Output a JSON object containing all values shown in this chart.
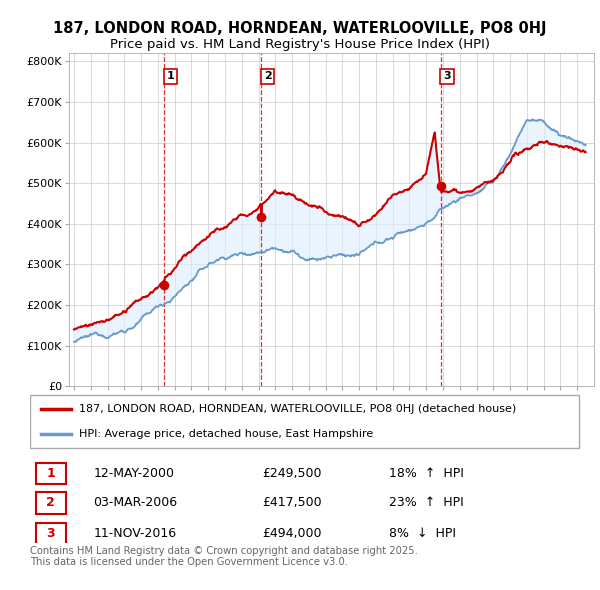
{
  "title": "187, LONDON ROAD, HORNDEAN, WATERLOOVILLE, PO8 0HJ",
  "subtitle": "Price paid vs. HM Land Registry's House Price Index (HPI)",
  "ylim": [
    0,
    820000
  ],
  "yticks": [
    0,
    100000,
    200000,
    300000,
    400000,
    500000,
    600000,
    700000,
    800000
  ],
  "ytick_labels": [
    "£0",
    "£100K",
    "£200K",
    "£300K",
    "£400K",
    "£500K",
    "£600K",
    "£700K",
    "£800K"
  ],
  "house_color": "#cc0000",
  "hpi_color": "#aabbdd",
  "hpi_line_color": "#6699cc",
  "vline_color": "#cc0000",
  "grid_color": "#cccccc",
  "fill_color": "#ddeeff",
  "background_color": "#ffffff",
  "legend_house": "187, LONDON ROAD, HORNDEAN, WATERLOOVILLE, PO8 0HJ (detached house)",
  "legend_hpi": "HPI: Average price, detached house, East Hampshire",
  "transactions": [
    {
      "num": 1,
      "date": "12-MAY-2000",
      "price": 249500,
      "pct": "18%",
      "dir": "↑",
      "year": 2000.37
    },
    {
      "num": 2,
      "date": "03-MAR-2006",
      "price": 417500,
      "pct": "23%",
      "dir": "↑",
      "year": 2006.17
    },
    {
      "num": 3,
      "date": "11-NOV-2016",
      "price": 494000,
      "pct": "8%",
      "dir": "↓",
      "year": 2016.86
    }
  ],
  "footer": "Contains HM Land Registry data © Crown copyright and database right 2025.\nThis data is licensed under the Open Government Licence v3.0.",
  "title_fontsize": 10.5,
  "subtitle_fontsize": 9.5,
  "tick_fontsize": 8,
  "legend_fontsize": 8,
  "table_fontsize": 9
}
